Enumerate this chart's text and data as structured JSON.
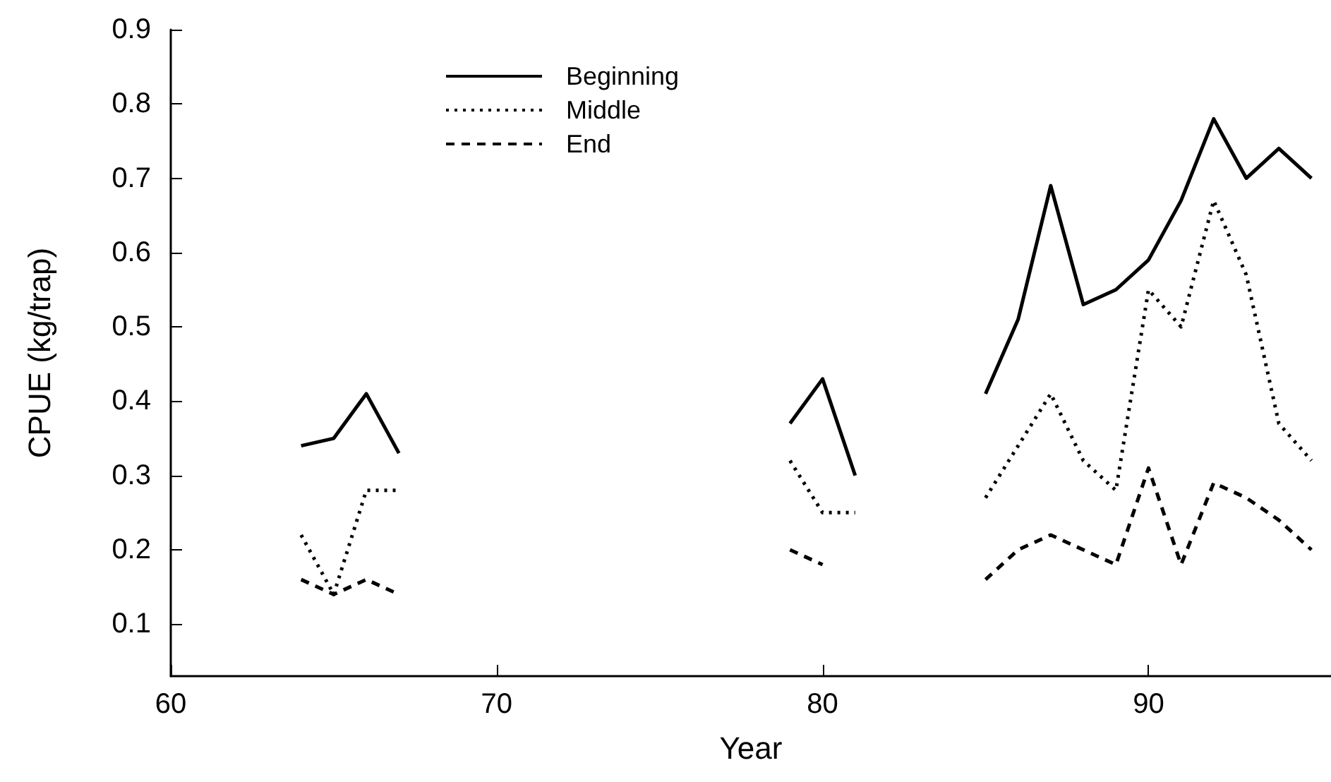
{
  "chart_data": {
    "type": "line",
    "xlabel": "Year",
    "ylabel": "CPUE (kg/trap)",
    "x": [
      64,
      65,
      66,
      67,
      68,
      69,
      70,
      71,
      72,
      73,
      74,
      75,
      76,
      77,
      78,
      79,
      80,
      81,
      82,
      83,
      84,
      85,
      86,
      87,
      88,
      89,
      90,
      91,
      92,
      93,
      94,
      95
    ],
    "series": [
      {
        "name": "Beginning",
        "color": "#000000",
        "line_style": "solid",
        "values": [
          0.34,
          0.35,
          0.41,
          0.33,
          null,
          null,
          null,
          null,
          null,
          null,
          null,
          null,
          null,
          null,
          null,
          0.37,
          0.43,
          0.3,
          null,
          null,
          null,
          0.41,
          0.51,
          0.69,
          0.53,
          0.55,
          0.59,
          0.67,
          0.78,
          0.7,
          0.74,
          0.7
        ]
      },
      {
        "name": "Middle",
        "color": "#000000",
        "line_style": "dotted",
        "values": [
          0.22,
          0.14,
          0.28,
          0.28,
          null,
          null,
          null,
          null,
          null,
          null,
          null,
          null,
          null,
          null,
          null,
          0.32,
          0.25,
          0.25,
          null,
          null,
          null,
          0.27,
          0.34,
          0.41,
          0.32,
          0.28,
          0.55,
          0.5,
          0.67,
          0.57,
          0.37,
          0.32
        ]
      },
      {
        "name": "End",
        "color": "#000000",
        "line_style": "dashed",
        "values": [
          0.16,
          0.14,
          0.16,
          0.14,
          null,
          null,
          null,
          null,
          null,
          null,
          null,
          null,
          null,
          null,
          null,
          0.2,
          0.18,
          null,
          null,
          null,
          null,
          0.16,
          0.2,
          0.22,
          0.2,
          0.18,
          0.31,
          0.18,
          0.29,
          0.27,
          0.24,
          0.2
        ]
      }
    ],
    "xlim": [
      60,
      95.6
    ],
    "xticks": [
      60,
      70,
      80,
      90
    ],
    "ylim": [
      0.03,
      0.9
    ],
    "yticks": [
      0.1,
      0.2,
      0.3,
      0.4,
      0.5,
      0.6,
      0.7,
      0.8,
      0.9
    ],
    "legend": "top left",
    "marker": "none",
    "grid": false
  }
}
